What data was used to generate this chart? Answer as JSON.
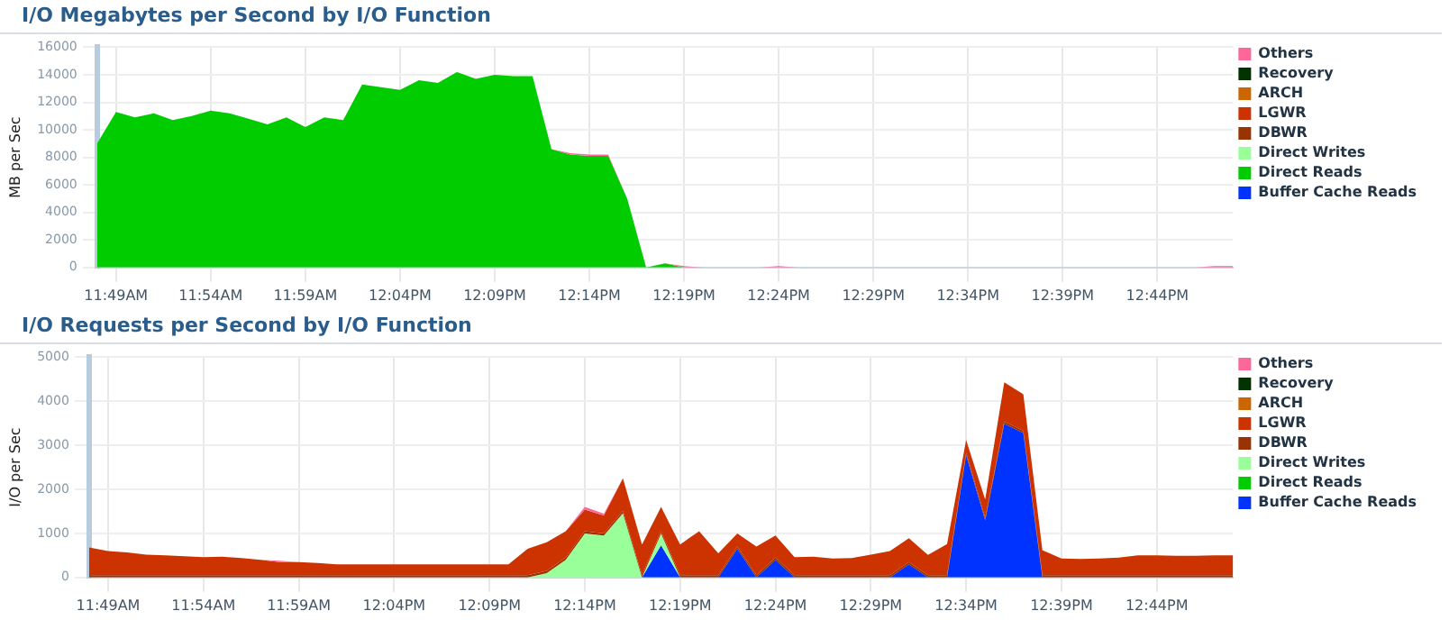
{
  "chart_data": [
    {
      "type": "area",
      "title": "I/O Megabytes per Second by I/O Function",
      "ylabel": "MB per Sec",
      "stacked": true,
      "grid": true,
      "legend": "right",
      "categories": [
        null,
        "11:49AM",
        null,
        null,
        null,
        null,
        "11:54AM",
        null,
        null,
        null,
        null,
        "11:59AM",
        null,
        null,
        null,
        null,
        "12:04PM",
        null,
        null,
        null,
        null,
        "12:09PM",
        null,
        null,
        null,
        null,
        "12:14PM",
        null,
        null,
        null,
        null,
        "12:19PM",
        null,
        null,
        null,
        null,
        "12:24PM",
        null,
        null,
        null,
        null,
        "12:29PM",
        null,
        null,
        null,
        null,
        "12:34PM",
        null,
        null,
        null,
        null,
        "12:39PM",
        null,
        null,
        null,
        null,
        "12:44PM",
        null,
        null,
        null,
        null
      ],
      "ylim": [
        0,
        16000
      ],
      "yticks": [
        0,
        2000,
        4000,
        6000,
        8000,
        10000,
        12000,
        14000,
        16000
      ],
      "series": [
        {
          "name": "Buffer Cache Reads",
          "color": "#0033ff",
          "values": [
            null,
            null,
            null,
            null,
            null,
            null,
            null,
            null,
            null,
            null,
            null,
            null,
            null,
            null,
            null,
            null,
            null,
            null,
            null,
            null,
            null,
            null,
            null,
            null,
            null,
            null,
            null,
            null,
            null,
            null,
            null,
            null,
            null,
            null,
            null,
            null,
            null,
            null,
            null,
            null,
            null,
            null,
            null,
            null,
            null,
            null,
            null,
            null,
            null,
            null,
            null,
            null,
            null,
            null,
            null,
            null,
            null,
            null,
            null,
            null,
            null
          ]
        },
        {
          "name": "Direct Reads",
          "color": "#00cc00",
          "values": [
            9000,
            11300,
            10900,
            11200,
            10700,
            11000,
            11400,
            11200,
            10800,
            10400,
            10900,
            10200,
            10900,
            10700,
            13300,
            13100,
            12900,
            13600,
            13400,
            14200,
            13700,
            14000,
            13900,
            13900,
            8600,
            8200,
            8100,
            8100,
            5000,
            0,
            300,
            0,
            0,
            0,
            0,
            0,
            0,
            0,
            0,
            0,
            0,
            0,
            0,
            0,
            0,
            0,
            0,
            0,
            0,
            0,
            0,
            0,
            0,
            0,
            0,
            0,
            0,
            0,
            0,
            0,
            0
          ]
        },
        {
          "name": "Direct Writes",
          "color": "#99ff99",
          "values": [
            null,
            null,
            null,
            null,
            null,
            null,
            null,
            null,
            null,
            null,
            null,
            null,
            null,
            null,
            null,
            null,
            null,
            null,
            null,
            null,
            null,
            null,
            null,
            null,
            null,
            null,
            null,
            null,
            null,
            null,
            null,
            null,
            null,
            null,
            null,
            null,
            null,
            null,
            null,
            null,
            null,
            null,
            null,
            null,
            null,
            null,
            null,
            null,
            null,
            null,
            null,
            null,
            null,
            null,
            null,
            null,
            null,
            null,
            null,
            null,
            null
          ]
        },
        {
          "name": "DBWR",
          "color": "#993300",
          "values": [
            null,
            null,
            null,
            null,
            null,
            null,
            null,
            null,
            null,
            null,
            null,
            null,
            null,
            null,
            null,
            null,
            null,
            null,
            null,
            null,
            null,
            null,
            null,
            null,
            null,
            null,
            null,
            null,
            null,
            null,
            null,
            null,
            null,
            null,
            null,
            null,
            null,
            null,
            null,
            null,
            null,
            null,
            null,
            null,
            null,
            null,
            null,
            null,
            null,
            null,
            null,
            null,
            null,
            null,
            null,
            null,
            null,
            null,
            null,
            null,
            null
          ]
        },
        {
          "name": "LGWR",
          "color": "#cc3300",
          "values": [
            null,
            null,
            null,
            null,
            null,
            null,
            null,
            null,
            null,
            null,
            null,
            null,
            null,
            null,
            null,
            null,
            null,
            null,
            null,
            null,
            null,
            null,
            null,
            null,
            null,
            null,
            null,
            null,
            null,
            null,
            null,
            null,
            null,
            null,
            null,
            null,
            null,
            null,
            null,
            null,
            null,
            null,
            null,
            null,
            null,
            null,
            null,
            null,
            null,
            null,
            null,
            null,
            null,
            null,
            null,
            null,
            null,
            null,
            null,
            null,
            null
          ]
        },
        {
          "name": "ARCH",
          "color": "#cc6600",
          "values": [
            null,
            null,
            null,
            null,
            null,
            null,
            null,
            null,
            null,
            null,
            null,
            null,
            null,
            null,
            null,
            null,
            null,
            null,
            null,
            null,
            null,
            null,
            null,
            null,
            null,
            null,
            null,
            null,
            null,
            null,
            null,
            null,
            null,
            null,
            null,
            null,
            null,
            null,
            null,
            null,
            null,
            null,
            null,
            null,
            null,
            null,
            null,
            null,
            null,
            null,
            null,
            null,
            null,
            null,
            null,
            null,
            null,
            null,
            null,
            null,
            null
          ]
        },
        {
          "color": "#ffff99",
          "values": [
            null,
            null,
            null,
            null,
            null,
            null,
            null,
            null,
            null,
            null,
            null,
            null,
            null,
            null,
            null,
            null,
            null,
            null,
            null,
            null,
            null,
            null,
            null,
            null,
            null,
            null,
            null,
            null,
            null,
            null,
            null,
            null,
            null,
            null,
            null,
            null,
            null,
            null,
            null,
            null,
            null,
            null,
            null,
            null,
            null,
            null,
            null,
            null,
            null,
            null,
            null,
            null,
            null,
            null,
            null,
            null,
            null,
            null,
            null,
            null,
            null
          ]
        },
        {
          "name": "Recovery",
          "color": "#003300",
          "values": [
            null,
            null,
            null,
            null,
            null,
            null,
            null,
            null,
            null,
            null,
            null,
            null,
            null,
            null,
            null,
            null,
            null,
            null,
            null,
            null,
            null,
            null,
            null,
            null,
            null,
            null,
            null,
            null,
            null,
            null,
            null,
            null,
            null,
            null,
            null,
            null,
            null,
            null,
            null,
            null,
            null,
            null,
            null,
            null,
            null,
            null,
            null,
            null,
            null,
            null,
            null,
            null,
            null,
            null,
            null,
            null,
            null,
            null,
            null,
            null,
            null
          ]
        },
        {
          "color": "#666666",
          "values": [
            null,
            null,
            null,
            null,
            null,
            null,
            null,
            null,
            null,
            null,
            null,
            null,
            null,
            null,
            null,
            null,
            null,
            null,
            null,
            null,
            null,
            null,
            null,
            null,
            null,
            null,
            null,
            null,
            null,
            null,
            null,
            null,
            null,
            null,
            null,
            null,
            null,
            null,
            null,
            null,
            null,
            null,
            null,
            null,
            null,
            null,
            null,
            null,
            null,
            null,
            null,
            null,
            null,
            null,
            null,
            null,
            null,
            null,
            null,
            null,
            null
          ]
        },
        {
          "color": "#999966",
          "values": [
            null,
            null,
            null,
            null,
            null,
            null,
            null,
            null,
            null,
            null,
            null,
            null,
            null,
            null,
            null,
            null,
            null,
            null,
            null,
            null,
            null,
            null,
            null,
            null,
            null,
            null,
            null,
            null,
            null,
            null,
            null,
            null,
            null,
            null,
            null,
            null,
            null,
            null,
            null,
            null,
            null,
            null,
            null,
            null,
            null,
            null,
            null,
            null,
            null,
            null,
            null,
            null,
            null,
            null,
            null,
            null,
            null,
            null,
            null,
            null,
            null
          ]
        },
        {
          "color": "#cccc99",
          "values": [
            null,
            null,
            null,
            null,
            null,
            null,
            null,
            null,
            null,
            null,
            null,
            null,
            null,
            null,
            null,
            null,
            null,
            null,
            null,
            null,
            null,
            null,
            null,
            null,
            null,
            null,
            null,
            null,
            null,
            null,
            null,
            null,
            null,
            null,
            null,
            null,
            null,
            null,
            null,
            null,
            null,
            null,
            null,
            null,
            null,
            null,
            null,
            null,
            null,
            null,
            null,
            null,
            null,
            null,
            null,
            null,
            null,
            null,
            null,
            null,
            null
          ]
        },
        {
          "name": "Others",
          "color": "#ff6699",
          "values": [
            null,
            null,
            null,
            null,
            null,
            null,
            null,
            null,
            null,
            null,
            null,
            null,
            null,
            null,
            null,
            null,
            null,
            null,
            null,
            null,
            null,
            null,
            null,
            null,
            0,
            100,
            100,
            100,
            0,
            null,
            0,
            100,
            0,
            null,
            null,
            0,
            100,
            0,
            null,
            null,
            null,
            null,
            null,
            null,
            null,
            null,
            null,
            null,
            null,
            null,
            null,
            null,
            null,
            null,
            null,
            null,
            null,
            null,
            0,
            100,
            100
          ]
        }
      ]
    },
    {
      "type": "area",
      "title": "I/O Requests per Second by I/O Function",
      "ylabel": "I/O per Sec",
      "stacked": true,
      "grid": true,
      "legend": "right",
      "categories": [
        null,
        "11:49AM",
        null,
        null,
        null,
        null,
        "11:54AM",
        null,
        null,
        null,
        null,
        "11:59AM",
        null,
        null,
        null,
        null,
        "12:04PM",
        null,
        null,
        null,
        null,
        "12:09PM",
        null,
        null,
        null,
        null,
        "12:14PM",
        null,
        null,
        null,
        null,
        "12:19PM",
        null,
        null,
        null,
        null,
        "12:24PM",
        null,
        null,
        null,
        null,
        "12:29PM",
        null,
        null,
        null,
        null,
        "12:34PM",
        null,
        null,
        null,
        null,
        "12:39PM",
        null,
        null,
        null,
        null,
        "12:44PM",
        null,
        null,
        null,
        null
      ],
      "ylim": [
        0,
        5000
      ],
      "yticks": [
        0,
        1000,
        2000,
        3000,
        4000,
        5000
      ],
      "series": [
        {
          "name": "Buffer Cache Reads",
          "color": "#0033ff",
          "values": [
            0,
            0,
            0,
            0,
            0,
            0,
            0,
            0,
            0,
            0,
            0,
            0,
            0,
            0,
            0,
            0,
            0,
            0,
            0,
            0,
            0,
            0,
            0,
            0,
            0,
            0,
            0,
            0,
            0,
            0,
            730,
            0,
            0,
            0,
            650,
            0,
            400,
            0,
            0,
            0,
            0,
            0,
            0,
            300,
            0,
            0,
            2780,
            1300,
            3490,
            3280,
            0,
            0,
            0,
            0,
            0,
            0,
            0,
            0,
            0,
            0,
            0
          ]
        },
        {
          "name": "Direct Reads",
          "color": "#00cc00",
          "values": [
            null,
            null,
            null,
            null,
            null,
            null,
            null,
            null,
            null,
            null,
            null,
            null,
            null,
            null,
            null,
            null,
            null,
            null,
            null,
            null,
            null,
            null,
            null,
            null,
            null,
            null,
            null,
            null,
            null,
            null,
            null,
            null,
            null,
            null,
            null,
            null,
            null,
            null,
            null,
            null,
            null,
            null,
            null,
            null,
            null,
            null,
            null,
            null,
            null,
            null,
            null,
            null,
            null,
            null,
            null,
            null,
            null,
            null,
            null,
            null,
            null
          ]
        },
        {
          "name": "Direct Writes",
          "color": "#99ff99",
          "values": [
            null,
            null,
            null,
            null,
            null,
            null,
            null,
            null,
            null,
            null,
            null,
            null,
            null,
            null,
            null,
            null,
            null,
            null,
            null,
            null,
            null,
            null,
            null,
            0,
            100,
            400,
            1000,
            950,
            1460,
            0,
            270,
            0,
            null,
            null,
            null,
            null,
            null,
            null,
            null,
            null,
            null,
            null,
            null,
            null,
            null,
            null,
            null,
            null,
            null,
            null,
            null,
            null,
            null,
            null,
            null,
            null,
            null,
            null,
            null,
            null,
            null
          ]
        },
        {
          "name": "DBWR",
          "color": "#993300",
          "values": [
            50,
            50,
            50,
            50,
            50,
            50,
            50,
            50,
            50,
            50,
            50,
            50,
            50,
            50,
            50,
            50,
            50,
            50,
            50,
            50,
            50,
            50,
            50,
            50,
            50,
            50,
            50,
            50,
            50,
            50,
            50,
            50,
            50,
            50,
            50,
            50,
            50,
            50,
            50,
            50,
            50,
            50,
            50,
            50,
            50,
            50,
            50,
            50,
            50,
            50,
            50,
            50,
            50,
            50,
            50,
            50,
            50,
            50,
            50,
            50,
            50
          ]
        },
        {
          "name": "LGWR",
          "color": "#cc3300",
          "values": [
            630,
            550,
            520,
            470,
            450,
            430,
            410,
            420,
            390,
            350,
            300,
            300,
            280,
            250,
            250,
            250,
            250,
            250,
            250,
            250,
            250,
            250,
            250,
            600,
            650,
            600,
            490,
            410,
            740,
            700,
            550,
            700,
            1000,
            500,
            300,
            650,
            500,
            410,
            420,
            380,
            390,
            470,
            550,
            540,
            460,
            710,
            290,
            420,
            890,
            830,
            570,
            380,
            370,
            380,
            400,
            450,
            450,
            440,
            440,
            450,
            450
          ]
        },
        {
          "name": "ARCH",
          "color": "#cc6600",
          "values": [
            null,
            null,
            null,
            null,
            null,
            null,
            null,
            null,
            null,
            null,
            null,
            null,
            null,
            null,
            null,
            null,
            null,
            null,
            null,
            null,
            null,
            null,
            null,
            null,
            null,
            null,
            null,
            null,
            null,
            null,
            null,
            null,
            null,
            null,
            null,
            null,
            null,
            null,
            null,
            null,
            null,
            null,
            null,
            null,
            null,
            null,
            null,
            null,
            null,
            null,
            null,
            null,
            null,
            null,
            null,
            null,
            null,
            null,
            null,
            null,
            null
          ]
        },
        {
          "color": "#ffff99",
          "values": [
            null,
            null,
            null,
            null,
            null,
            null,
            null,
            null,
            null,
            null,
            null,
            null,
            null,
            null,
            null,
            null,
            null,
            null,
            null,
            null,
            null,
            null,
            null,
            null,
            null,
            null,
            null,
            null,
            null,
            null,
            null,
            null,
            null,
            null,
            null,
            null,
            null,
            null,
            null,
            null,
            null,
            null,
            null,
            null,
            null,
            null,
            null,
            null,
            null,
            null,
            null,
            null,
            null,
            null,
            null,
            null,
            null,
            null,
            null,
            null,
            null
          ]
        },
        {
          "name": "Recovery",
          "color": "#003300",
          "values": [
            null,
            null,
            null,
            null,
            null,
            null,
            null,
            null,
            null,
            null,
            null,
            null,
            null,
            null,
            null,
            null,
            null,
            null,
            null,
            null,
            null,
            null,
            null,
            null,
            null,
            null,
            null,
            null,
            null,
            null,
            null,
            null,
            null,
            null,
            null,
            null,
            null,
            null,
            null,
            null,
            null,
            null,
            null,
            null,
            null,
            null,
            null,
            null,
            null,
            null,
            null,
            null,
            null,
            null,
            null,
            null,
            null,
            null,
            null,
            null,
            null
          ]
        },
        {
          "color": "#666666",
          "values": [
            null,
            null,
            null,
            null,
            null,
            null,
            null,
            null,
            null,
            null,
            null,
            null,
            null,
            null,
            null,
            null,
            null,
            null,
            null,
            null,
            null,
            null,
            null,
            null,
            null,
            null,
            null,
            null,
            null,
            null,
            null,
            null,
            null,
            null,
            null,
            null,
            null,
            null,
            null,
            null,
            null,
            null,
            null,
            null,
            null,
            null,
            null,
            null,
            null,
            null,
            null,
            null,
            null,
            null,
            null,
            null,
            null,
            null,
            null,
            null,
            null
          ]
        },
        {
          "color": "#999966",
          "values": [
            null,
            null,
            null,
            null,
            null,
            null,
            null,
            null,
            null,
            null,
            null,
            null,
            null,
            null,
            null,
            null,
            null,
            null,
            null,
            null,
            null,
            null,
            null,
            null,
            null,
            null,
            null,
            null,
            null,
            null,
            null,
            null,
            null,
            null,
            null,
            null,
            null,
            null,
            null,
            null,
            null,
            null,
            null,
            null,
            null,
            null,
            null,
            null,
            null,
            null,
            null,
            null,
            null,
            null,
            null,
            null,
            null,
            null,
            null,
            null,
            null
          ]
        },
        {
          "color": "#cccc99",
          "values": [
            null,
            null,
            null,
            null,
            null,
            null,
            null,
            null,
            null,
            null,
            null,
            null,
            null,
            null,
            null,
            null,
            null,
            null,
            null,
            null,
            null,
            null,
            null,
            null,
            null,
            null,
            null,
            null,
            null,
            null,
            null,
            null,
            null,
            null,
            null,
            null,
            null,
            null,
            null,
            null,
            null,
            null,
            null,
            null,
            null,
            null,
            null,
            null,
            null,
            null,
            null,
            null,
            null,
            null,
            null,
            null,
            null,
            null,
            null,
            null,
            null
          ]
        },
        {
          "name": "Others",
          "color": "#ff6699",
          "values": [
            null,
            null,
            null,
            null,
            null,
            null,
            null,
            null,
            null,
            0,
            30,
            0,
            null,
            null,
            null,
            null,
            null,
            null,
            null,
            null,
            null,
            null,
            null,
            null,
            null,
            0,
            60,
            40,
            0,
            null,
            null,
            null,
            null,
            null,
            null,
            null,
            null,
            null,
            null,
            null,
            null,
            null,
            null,
            null,
            null,
            null,
            null,
            null,
            null,
            null,
            null,
            null,
            null,
            null,
            null,
            null,
            null,
            null,
            null,
            null,
            null
          ]
        }
      ]
    }
  ]
}
